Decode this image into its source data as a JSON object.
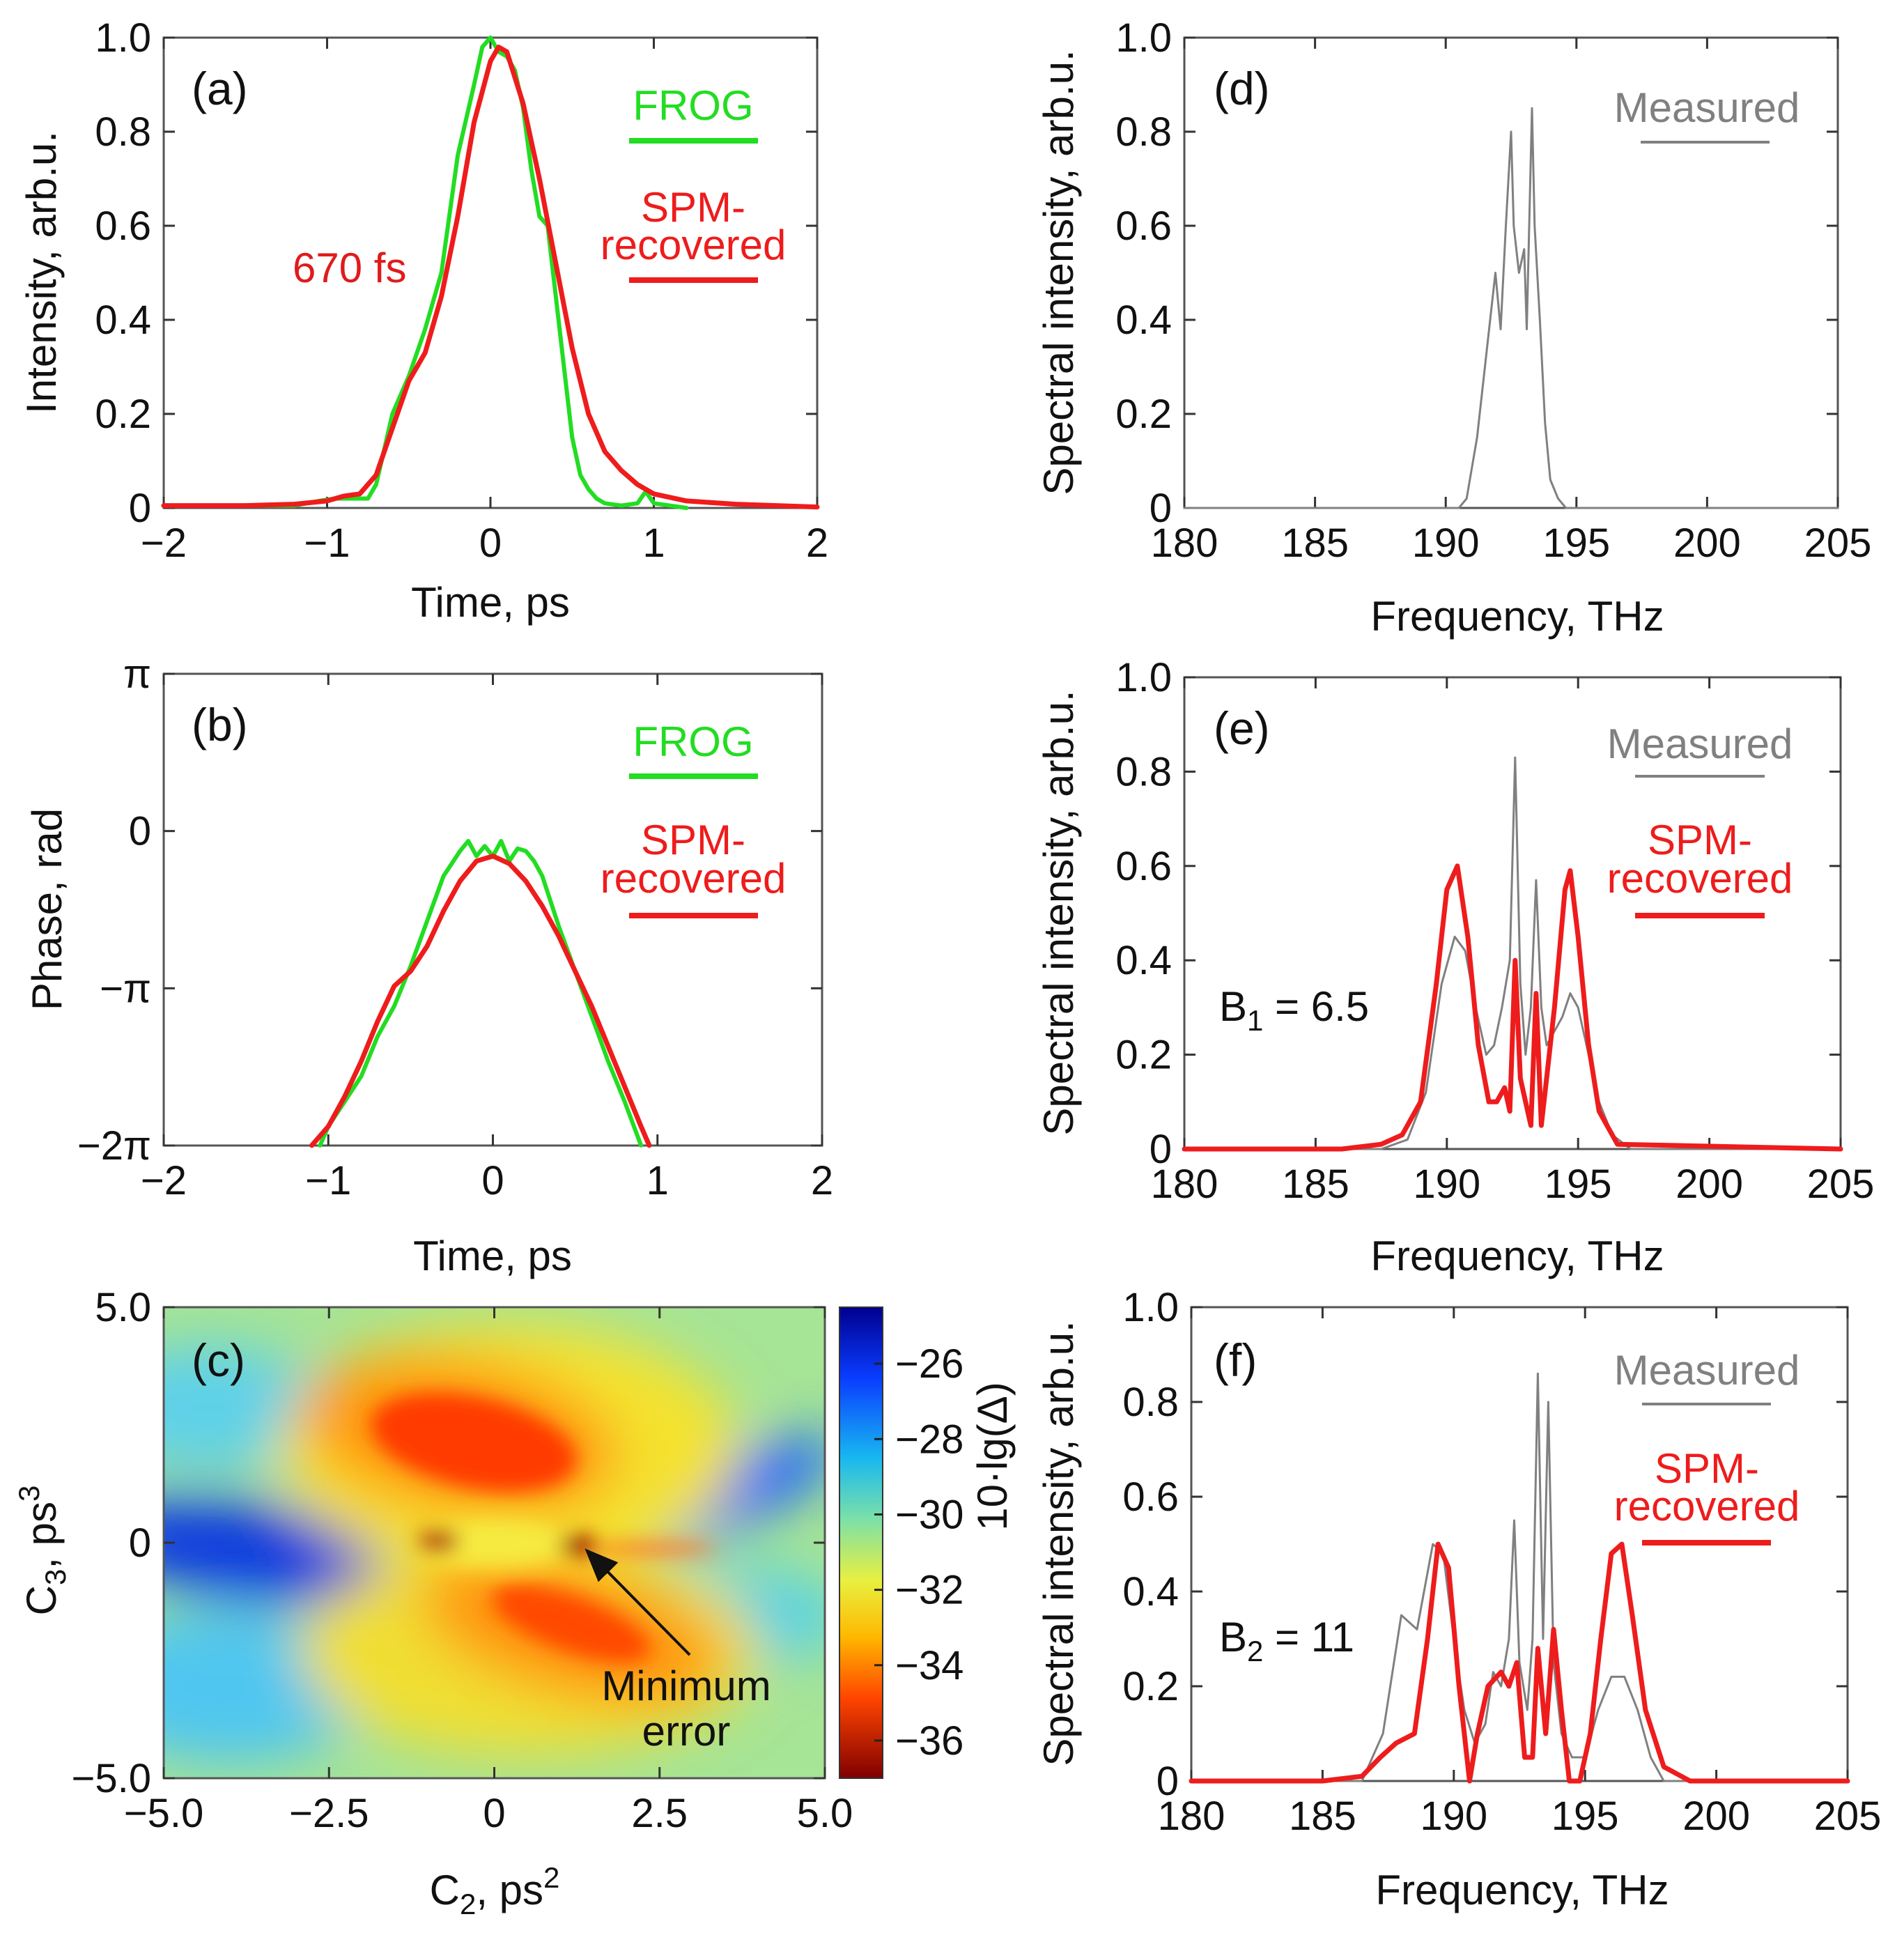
{
  "colors": {
    "frog": "#22dd22",
    "spm": "#ee1c1c",
    "measured": "#808080",
    "annot": "#e01b1b",
    "text": "#111111"
  },
  "chart_data": [
    {
      "id": "a",
      "type": "line",
      "panel_label": "(a)",
      "xlabel": "Time, ps",
      "ylabel": "Intensity, arb.u.",
      "xlim": [
        -2,
        2
      ],
      "ylim": [
        0,
        1
      ],
      "xticks": [
        -2,
        -1,
        0,
        1,
        2
      ],
      "xtick_labels": [
        "−2",
        "−1",
        "0",
        "1",
        "2"
      ],
      "yticks": [
        0,
        0.2,
        0.4,
        0.6,
        0.8,
        1.0
      ],
      "ytick_labels": [
        "0",
        "0.2",
        "0.4",
        "0.6",
        "0.8",
        "1.0"
      ],
      "annotation": "670 fs",
      "series": [
        {
          "name": "FROG",
          "color": "#22dd22",
          "x": [
            -2,
            -1.5,
            -1.2,
            -1.05,
            -0.95,
            -0.85,
            -0.75,
            -0.7,
            -0.6,
            -0.5,
            -0.4,
            -0.3,
            -0.2,
            -0.1,
            -0.05,
            0.0,
            0.05,
            0.1,
            0.15,
            0.2,
            0.25,
            0.3,
            0.35,
            0.4,
            0.45,
            0.5,
            0.55,
            0.6,
            0.65,
            0.7,
            0.8,
            0.9,
            0.95,
            1.0,
            1.2
          ],
          "y": [
            0.005,
            0.005,
            0.005,
            0.015,
            0.02,
            0.02,
            0.02,
            0.05,
            0.2,
            0.28,
            0.38,
            0.5,
            0.75,
            0.9,
            0.98,
            1.0,
            0.97,
            0.96,
            0.93,
            0.85,
            0.72,
            0.62,
            0.6,
            0.45,
            0.3,
            0.15,
            0.07,
            0.04,
            0.02,
            0.01,
            0.005,
            0.01,
            0.035,
            0.01,
            0.0
          ]
        },
        {
          "name": "SPM-recovered",
          "color": "#ee1c1c",
          "x": [
            -2,
            -1.5,
            -1.2,
            -1.0,
            -0.9,
            -0.8,
            -0.7,
            -0.6,
            -0.5,
            -0.4,
            -0.3,
            -0.2,
            -0.1,
            0.0,
            0.05,
            0.1,
            0.2,
            0.3,
            0.4,
            0.5,
            0.6,
            0.7,
            0.8,
            0.9,
            1.0,
            1.2,
            1.5,
            2.0
          ],
          "y": [
            0.005,
            0.005,
            0.008,
            0.015,
            0.025,
            0.03,
            0.07,
            0.17,
            0.27,
            0.33,
            0.45,
            0.62,
            0.82,
            0.95,
            0.98,
            0.97,
            0.86,
            0.7,
            0.52,
            0.34,
            0.2,
            0.12,
            0.08,
            0.05,
            0.03,
            0.015,
            0.008,
            0.002
          ]
        }
      ],
      "legend": {
        "placement": "top-right",
        "entries": [
          "FROG",
          "SPM-\nrecovered"
        ]
      }
    },
    {
      "id": "b",
      "type": "line",
      "panel_label": "(b)",
      "xlabel": "Time, ps",
      "ylabel": "Phase, rad",
      "xlim": [
        -2,
        2
      ],
      "ylim": [
        -6.2832,
        3.1416
      ],
      "xticks": [
        -2,
        -1,
        0,
        1,
        2
      ],
      "xtick_labels": [
        "−2",
        "−1",
        "0",
        "1",
        "2"
      ],
      "yticks": [
        -6.2832,
        -3.1416,
        0,
        3.1416
      ],
      "ytick_labels": [
        "−2π",
        "−π",
        "0",
        "π"
      ],
      "series": [
        {
          "name": "FROG",
          "color": "#22dd22",
          "x": [
            -1.05,
            -1.0,
            -0.9,
            -0.8,
            -0.7,
            -0.6,
            -0.5,
            -0.4,
            -0.3,
            -0.2,
            -0.15,
            -0.1,
            -0.05,
            0.0,
            0.05,
            0.1,
            0.15,
            0.2,
            0.25,
            0.3,
            0.4,
            0.5,
            0.6,
            0.7,
            0.8,
            0.9
          ],
          "y": [
            -6.28,
            -5.9,
            -5.4,
            -4.9,
            -4.1,
            -3.5,
            -2.7,
            -1.8,
            -0.9,
            -0.4,
            -0.2,
            -0.5,
            -0.3,
            -0.5,
            -0.2,
            -0.6,
            -0.35,
            -0.4,
            -0.6,
            -0.9,
            -1.9,
            -2.8,
            -3.7,
            -4.6,
            -5.4,
            -6.28
          ]
        },
        {
          "name": "SPM-recovered",
          "color": "#ee1c1c",
          "x": [
            -1.1,
            -1.0,
            -0.9,
            -0.8,
            -0.7,
            -0.6,
            -0.5,
            -0.4,
            -0.3,
            -0.2,
            -0.1,
            0.0,
            0.1,
            0.2,
            0.3,
            0.4,
            0.5,
            0.6,
            0.7,
            0.8,
            0.9,
            0.95
          ],
          "y": [
            -6.28,
            -5.9,
            -5.3,
            -4.6,
            -3.8,
            -3.1,
            -2.8,
            -2.3,
            -1.6,
            -1.0,
            -0.6,
            -0.5,
            -0.65,
            -1.0,
            -1.5,
            -2.1,
            -2.8,
            -3.5,
            -4.3,
            -5.1,
            -5.9,
            -6.28
          ]
        }
      ],
      "legend": {
        "placement": "top-right",
        "entries": [
          "FROG",
          "SPM-\nrecovered"
        ]
      }
    },
    {
      "id": "c",
      "type": "heatmap",
      "panel_label": "(c)",
      "xlabel": "C2, ps2",
      "ylabel": "C3, ps3",
      "xlim": [
        -5,
        5
      ],
      "ylim": [
        -5,
        5
      ],
      "xticks": [
        -5,
        -2.5,
        0,
        2.5,
        5
      ],
      "xtick_labels": [
        "−5.0",
        "−2.5",
        "0",
        "2.5",
        "5.0"
      ],
      "yticks": [
        -5,
        0,
        5
      ],
      "ytick_labels": [
        "−5.0",
        "0",
        "5.0"
      ],
      "colorbar_label": "10·lg(Δ)",
      "colorbar_range": [
        -37,
        -24.5
      ],
      "colorbar_ticks": [
        -26,
        -28,
        -30,
        -32,
        -34,
        -36
      ],
      "colorbar_tick_labels": [
        "−26",
        "−28",
        "−30",
        "−32",
        "−34",
        "−36"
      ],
      "annotation": "Minimum\nerror",
      "minimum_point": [
        1.35,
        0.0
      ]
    },
    {
      "id": "d",
      "type": "line",
      "panel_label": "(d)",
      "xlabel": "Frequency, THz",
      "ylabel": "Spectral intensity, arb.u.",
      "xlim": [
        180,
        205
      ],
      "ylim": [
        0,
        1
      ],
      "xticks": [
        180,
        185,
        190,
        195,
        200,
        205
      ],
      "xtick_labels": [
        "180",
        "185",
        "190",
        "195",
        "200",
        "205"
      ],
      "yticks": [
        0,
        0.2,
        0.4,
        0.6,
        0.8,
        1.0
      ],
      "ytick_labels": [
        "0",
        "0.2",
        "0.4",
        "0.6",
        "0.8",
        "1.0"
      ],
      "series": [
        {
          "name": "Measured",
          "color": "#808080",
          "x": [
            180,
            190.5,
            190.8,
            191.2,
            191.6,
            191.9,
            192.1,
            192.3,
            192.5,
            192.6,
            192.8,
            193.0,
            193.1,
            193.3,
            193.4,
            193.6,
            193.8,
            194.0,
            194.3,
            194.6,
            205
          ],
          "y": [
            0,
            0,
            0.02,
            0.15,
            0.35,
            0.5,
            0.38,
            0.6,
            0.8,
            0.6,
            0.5,
            0.55,
            0.38,
            0.85,
            0.6,
            0.4,
            0.18,
            0.06,
            0.02,
            0,
            0
          ]
        }
      ],
      "legend": {
        "placement": "top-right",
        "entries": [
          "Measured"
        ]
      }
    },
    {
      "id": "e",
      "type": "line",
      "panel_label": "(e)",
      "xlabel": "Frequency, THz",
      "ylabel": "Spectral intensity, arb.u.",
      "xlim": [
        180,
        205
      ],
      "ylim": [
        0,
        1
      ],
      "xticks": [
        180,
        185,
        190,
        195,
        200,
        205
      ],
      "xtick_labels": [
        "180",
        "185",
        "190",
        "195",
        "200",
        "205"
      ],
      "yticks": [
        0,
        0.2,
        0.4,
        0.6,
        0.8,
        1.0
      ],
      "ytick_labels": [
        "0",
        "0.2",
        "0.4",
        "0.6",
        "0.8",
        "1.0"
      ],
      "annotation": "B1 = 6.5",
      "series": [
        {
          "name": "Measured",
          "color": "#808080",
          "x": [
            180,
            187.5,
            188.5,
            189.2,
            189.8,
            190.3,
            190.7,
            191.1,
            191.5,
            191.8,
            192.1,
            192.4,
            192.6,
            192.8,
            193.0,
            193.2,
            193.4,
            193.6,
            193.8,
            194.1,
            194.4,
            194.7,
            195.0,
            195.4,
            195.8,
            196.3,
            197.0,
            205
          ],
          "y": [
            0,
            0,
            0.02,
            0.12,
            0.35,
            0.45,
            0.42,
            0.3,
            0.2,
            0.22,
            0.3,
            0.4,
            0.83,
            0.35,
            0.2,
            0.3,
            0.57,
            0.3,
            0.22,
            0.25,
            0.28,
            0.33,
            0.3,
            0.2,
            0.1,
            0.03,
            0,
            0
          ]
        },
        {
          "name": "SPM-recovered",
          "color": "#ee1c1c",
          "x": [
            180,
            186,
            187.5,
            188.3,
            189.0,
            189.6,
            190.0,
            190.4,
            190.8,
            191.2,
            191.6,
            191.9,
            192.2,
            192.4,
            192.6,
            192.8,
            193.0,
            193.2,
            193.4,
            193.6,
            193.8,
            194.1,
            194.5,
            194.7,
            195.0,
            195.4,
            195.8,
            196.5,
            205
          ],
          "y": [
            0,
            0,
            0.01,
            0.03,
            0.1,
            0.35,
            0.55,
            0.6,
            0.45,
            0.22,
            0.1,
            0.1,
            0.13,
            0.08,
            0.4,
            0.15,
            0.1,
            0.05,
            0.33,
            0.05,
            0.15,
            0.3,
            0.55,
            0.59,
            0.45,
            0.22,
            0.08,
            0.01,
            0
          ]
        }
      ],
      "legend": {
        "placement": "top-right",
        "entries": [
          "Measured",
          "SPM-\nrecovered"
        ]
      }
    },
    {
      "id": "f",
      "type": "line",
      "panel_label": "(f)",
      "xlabel": "Frequency, THz",
      "ylabel": "Spectral intensity, arb.u.",
      "xlim": [
        180,
        205
      ],
      "ylim": [
        0,
        1
      ],
      "xticks": [
        180,
        185,
        190,
        195,
        200,
        205
      ],
      "xtick_labels": [
        "180",
        "185",
        "190",
        "195",
        "200",
        "205"
      ],
      "yticks": [
        0,
        0.2,
        0.4,
        0.6,
        0.8,
        1.0
      ],
      "ytick_labels": [
        "0",
        "0.2",
        "0.4",
        "0.6",
        "0.8",
        "1.0"
      ],
      "annotation": "B2 = 11",
      "series": [
        {
          "name": "Measured",
          "color": "#808080",
          "x": [
            180,
            186.5,
            187.3,
            188.0,
            188.6,
            189.2,
            189.6,
            190.0,
            190.4,
            190.8,
            191.2,
            191.5,
            191.8,
            192.1,
            192.3,
            192.5,
            192.8,
            193.0,
            193.2,
            193.4,
            193.6,
            193.8,
            194.1,
            194.5,
            195.0,
            195.5,
            196.0,
            196.5,
            197.0,
            197.5,
            198.0,
            205
          ],
          "y": [
            0,
            0,
            0.1,
            0.35,
            0.32,
            0.5,
            0.48,
            0.3,
            0.15,
            0.08,
            0.12,
            0.23,
            0.2,
            0.3,
            0.55,
            0.25,
            0.15,
            0.3,
            0.86,
            0.3,
            0.8,
            0.25,
            0.1,
            0.05,
            0.05,
            0.15,
            0.22,
            0.22,
            0.15,
            0.05,
            0,
            0
          ]
        },
        {
          "name": "SPM-recovered",
          "color": "#ee1c1c",
          "x": [
            180,
            185,
            186.5,
            187.2,
            187.8,
            188.5,
            189.0,
            189.4,
            189.8,
            190.2,
            190.6,
            190.9,
            191.3,
            191.8,
            192.1,
            192.4,
            192.7,
            193.0,
            193.2,
            193.5,
            193.8,
            194.1,
            194.4,
            194.8,
            195.2,
            195.6,
            196.0,
            196.4,
            196.8,
            197.3,
            198.0,
            199.0,
            205
          ],
          "y": [
            0,
            0,
            0.01,
            0.05,
            0.08,
            0.1,
            0.3,
            0.5,
            0.45,
            0.2,
            0.0,
            0.1,
            0.2,
            0.23,
            0.2,
            0.25,
            0.05,
            0.05,
            0.28,
            0.1,
            0.32,
            0.15,
            0.0,
            0.0,
            0.1,
            0.3,
            0.48,
            0.5,
            0.35,
            0.15,
            0.03,
            0,
            0
          ]
        }
      ],
      "legend": {
        "placement": "top-right",
        "entries": [
          "Measured",
          "SPM-\nrecovered"
        ]
      }
    }
  ]
}
